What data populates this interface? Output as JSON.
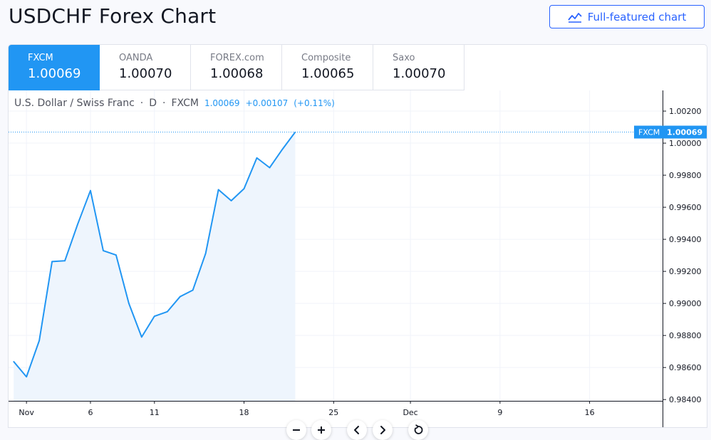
{
  "page": {
    "title": "USDCHF Forex Chart",
    "full_chart_button": {
      "label": "Full-featured chart",
      "icon": "chart-line-icon"
    }
  },
  "tabs": [
    {
      "name": "FXCM",
      "value": "1.00069",
      "active": true
    },
    {
      "name": "OANDA",
      "value": "1.00070",
      "active": false
    },
    {
      "name": "FOREX.com",
      "value": "1.00068",
      "active": false
    },
    {
      "name": "Composite",
      "value": "1.00065",
      "active": false
    },
    {
      "name": "Saxo",
      "value": "1.00070",
      "active": false
    }
  ],
  "legend": {
    "symbol": "U.S. Dollar / Swiss Franc",
    "sep1": "·",
    "interval": "D",
    "sep2": "·",
    "source": "FXCM",
    "last": "1.00069",
    "change": "+0.00107",
    "change_pct": "(+0.11%)"
  },
  "controls": [
    {
      "name": "zoom-out-button",
      "icon": "minus-icon"
    },
    {
      "name": "zoom-in-button",
      "icon": "plus-icon"
    },
    {
      "name": "scroll-left-button",
      "icon": "chevron-left-icon"
    },
    {
      "name": "scroll-right-button",
      "icon": "chevron-right-icon"
    },
    {
      "name": "reset-chart-button",
      "icon": "reset-icon"
    }
  ],
  "chart_data": {
    "type": "area",
    "x_tick_labels": [
      {
        "day": 1,
        "label": "Nov"
      },
      {
        "day": 6,
        "label": "6"
      },
      {
        "day": 11,
        "label": "11"
      },
      {
        "day": 18,
        "label": "18"
      },
      {
        "day": 25,
        "label": "25"
      },
      {
        "day": 31,
        "label": "Dec"
      },
      {
        "day": 38,
        "label": "9"
      },
      {
        "day": 45,
        "label": "16"
      }
    ],
    "xlim": [
      -0.4,
      50.7
    ],
    "ylim": [
      0.98392,
      1.00329
    ],
    "y_ticks": [
      "1.00200",
      "1.00000",
      "0.99800",
      "0.99600",
      "0.99400",
      "0.99200",
      "0.99000",
      "0.98800",
      "0.98600",
      "0.98400"
    ],
    "series": [
      {
        "points": [
          [
            0,
            0.98637
          ],
          [
            1,
            0.98542
          ],
          [
            2,
            0.98768
          ],
          [
            3,
            0.99261
          ],
          [
            4,
            0.99266
          ],
          [
            5,
            0.99494
          ],
          [
            6,
            0.99704
          ],
          [
            7,
            0.99329
          ],
          [
            8,
            0.99302
          ],
          [
            9,
            0.99
          ],
          [
            10,
            0.9879
          ],
          [
            11,
            0.9892
          ],
          [
            12,
            0.98948
          ],
          [
            13,
            0.99042
          ],
          [
            14,
            0.99083
          ],
          [
            15,
            0.99312
          ],
          [
            16,
            0.9971
          ],
          [
            17,
            0.99641
          ],
          [
            18,
            0.99716
          ],
          [
            19,
            0.99908
          ],
          [
            20,
            0.99847
          ],
          [
            21,
            0.99962
          ],
          [
            22,
            1.00069
          ]
        ]
      }
    ],
    "last_price_label": {
      "source": "FXCM",
      "value": "1.00069"
    },
    "colors": {
      "line": "#2196f3",
      "area": "#eef5fd",
      "grid": "#f0f3fa",
      "active_tab": "#2196f3"
    }
  }
}
